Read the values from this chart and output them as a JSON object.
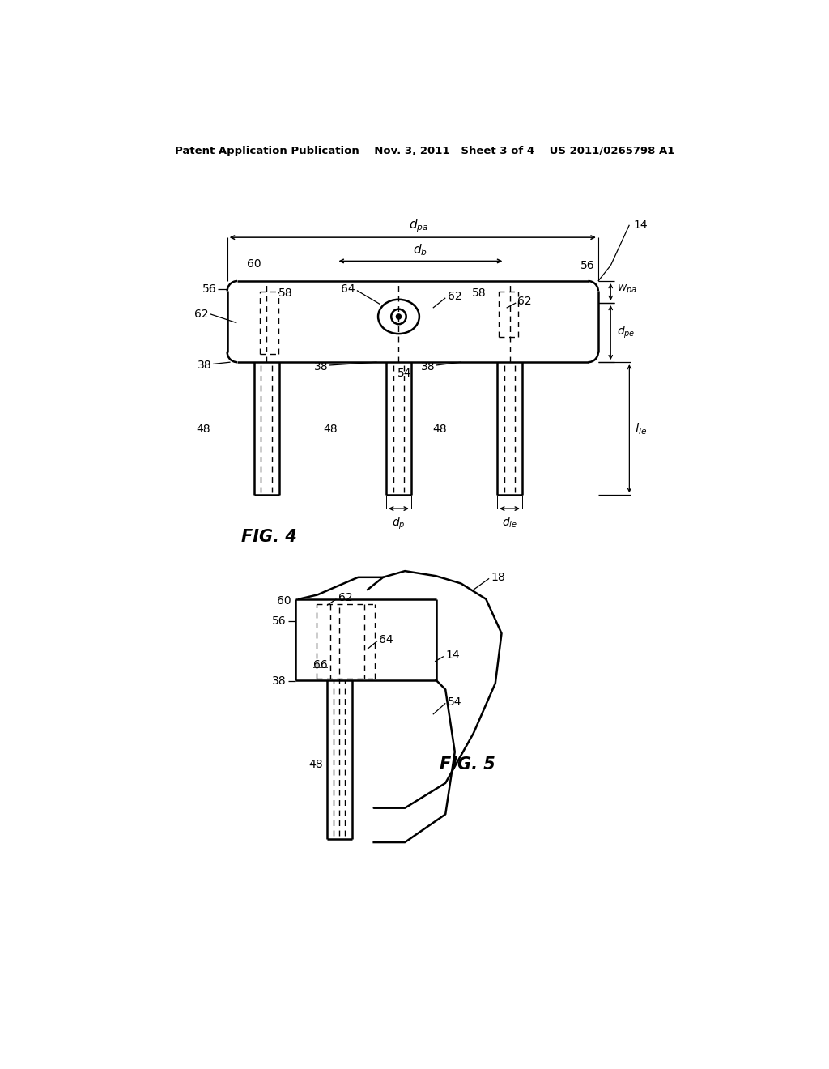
{
  "bg_color": "#ffffff",
  "line_color": "#000000",
  "header_text": "Patent Application Publication    Nov. 3, 2011   Sheet 3 of 4    US 2011/0265798 A1",
  "fig4_label": "FIG. 4",
  "fig5_label": "FIG. 5"
}
